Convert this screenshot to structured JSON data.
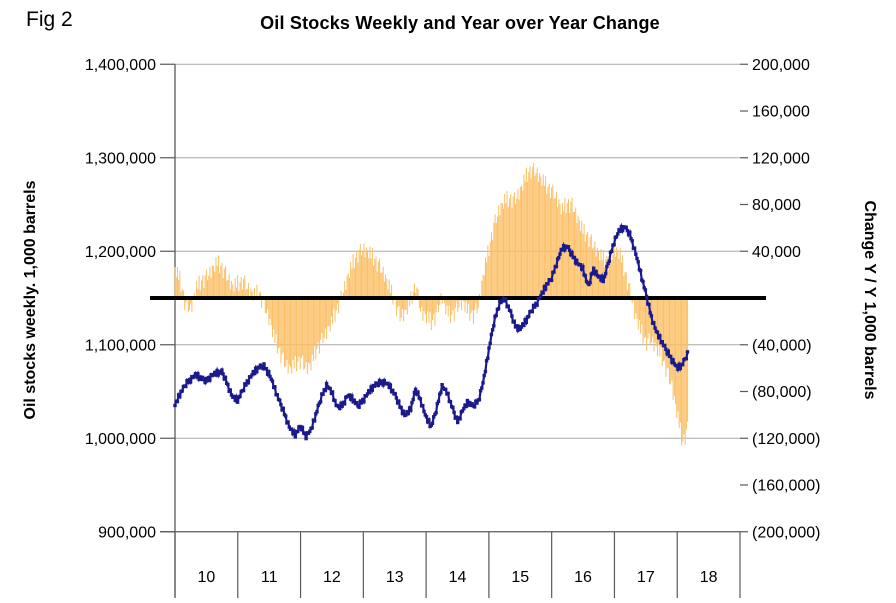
{
  "figure_label": "Fig 2",
  "title": "Oil Stocks Weekly and Year over Year Change",
  "colors": {
    "bar": "#FBBE63",
    "line": "#1A1A8C",
    "zero_line": "#000000",
    "gridline": "#A9A9A9",
    "axis": "#595959",
    "background": "#FFFFFF",
    "text": "#000000"
  },
  "chart_data": {
    "type": "bar+line combo, dual axis",
    "title": "Oil Stocks Weekly and Year over Year Change",
    "x_axis": {
      "tick_labels": [
        "10",
        "11",
        "12",
        "13",
        "14",
        "15",
        "16",
        "17",
        "18"
      ],
      "start": "2010-01",
      "end": "2018-12",
      "data_ends": "2018-03"
    },
    "left_axis": {
      "title": "Oil stocks weekly. 1,000 barrels",
      "range": [
        900000,
        1400000
      ],
      "tick_labels": [
        "1,400,000",
        "1,300,000",
        "1,200,000",
        "1,100,000",
        "1,000,000",
        "900,000"
      ],
      "tick_values": [
        1400000,
        1300000,
        1200000,
        1100000,
        1000000,
        900000
      ]
    },
    "right_axis": {
      "title": "Change Y / Y 1,000 barrels",
      "range": [
        -200000,
        200000
      ],
      "tick_labels": [
        "200,000",
        "160,000",
        "120,000",
        "80,000",
        "40,000",
        "(40,000)",
        "(80,000)",
        "(120,000)",
        "(160,000)",
        "(200,000)"
      ],
      "tick_values": [
        200000,
        160000,
        120000,
        80000,
        40000,
        -40000,
        -80000,
        -120000,
        -160000,
        -200000
      ],
      "zero_label": ""
    },
    "zero_line": {
      "right_axis_value": 0,
      "left_axis_value": 1150000
    },
    "grid": "horizontal gridlines at each left-axis step",
    "legend": "none",
    "series": [
      {
        "name": "Oil stocks weekly",
        "type": "line",
        "axis": "left",
        "marker": "square",
        "frequency": "weekly (values below sampled monthly, Jan 2010 - Mar 2018)",
        "monthly_values": [
          1035000,
          1048000,
          1057000,
          1063000,
          1068000,
          1064000,
          1061000,
          1067000,
          1070000,
          1071000,
          1058000,
          1044000,
          1041000,
          1052000,
          1062000,
          1070000,
          1076000,
          1077000,
          1069000,
          1054000,
          1039000,
          1025000,
          1010000,
          1004000,
          1013000,
          1002000,
          1009000,
          1027000,
          1044000,
          1057000,
          1049000,
          1033000,
          1035000,
          1046000,
          1042000,
          1034000,
          1041000,
          1049000,
          1056000,
          1059000,
          1060000,
          1056000,
          1047000,
          1034000,
          1024000,
          1031000,
          1052000,
          1040000,
          1022000,
          1013000,
          1031000,
          1056000,
          1049000,
          1033000,
          1017000,
          1030000,
          1039000,
          1034000,
          1040000,
          1062000,
          1095000,
          1124000,
          1144000,
          1149000,
          1137000,
          1120000,
          1117000,
          1125000,
          1135000,
          1143000,
          1153000,
          1164000,
          1171000,
          1188000,
          1203000,
          1205000,
          1195000,
          1187000,
          1181000,
          1162000,
          1181000,
          1172000,
          1170000,
          1191000,
          1211000,
          1223000,
          1226000,
          1217000,
          1199000,
          1177000,
          1155000,
          1131000,
          1114000,
          1104000,
          1093000,
          1084000,
          1075000,
          1079000,
          1090000
        ],
        "weekly_variation": [
          0,
          1600,
          -1800,
          2400,
          -2600,
          800,
          -900,
          1900,
          300,
          -2100,
          2700,
          -700,
          1200,
          -2800,
          1700,
          -400
        ]
      },
      {
        "name": "Change year over year",
        "type": "bar",
        "axis": "right",
        "frequency": "weekly (values below sampled monthly, Jan 2010 - Mar 2018)",
        "monthly_values": [
          25000,
          15000,
          -6000,
          -10000,
          8000,
          14000,
          18000,
          24000,
          30000,
          26000,
          18000,
          10000,
          12000,
          15000,
          8000,
          2000,
          5000,
          -6000,
          -18000,
          -35000,
          -46000,
          -56000,
          -61000,
          -57000,
          -53000,
          -60000,
          -57000,
          -45000,
          -37000,
          -29000,
          -21000,
          -9000,
          3000,
          18000,
          30000,
          38000,
          42000,
          39000,
          34000,
          28000,
          20000,
          9000,
          -4000,
          -16000,
          -13000,
          -3000,
          12000,
          -12000,
          -16000,
          -21000,
          -14000,
          2000,
          -13000,
          -15000,
          -8000,
          -3000,
          -12000,
          -15000,
          -7000,
          22000,
          42000,
          63000,
          76000,
          83000,
          85000,
          84000,
          92000,
          103000,
          110000,
          108000,
          102000,
          96000,
          92000,
          85000,
          75000,
          81000,
          79000,
          68000,
          57000,
          52000,
          45000,
          38000,
          33000,
          31000,
          42000,
          38000,
          22000,
          5000,
          -15000,
          -28000,
          -38000,
          -36000,
          -43000,
          -50000,
          -62000,
          -76000,
          -100000,
          -124000,
          -112000
        ],
        "weekly_variation": [
          1500,
          -5000,
          6000,
          -2500,
          7500,
          -6500,
          500,
          4000,
          -7500,
          2500,
          6500,
          -4000,
          -1500,
          5000,
          -6000,
          3000
        ]
      }
    ]
  }
}
